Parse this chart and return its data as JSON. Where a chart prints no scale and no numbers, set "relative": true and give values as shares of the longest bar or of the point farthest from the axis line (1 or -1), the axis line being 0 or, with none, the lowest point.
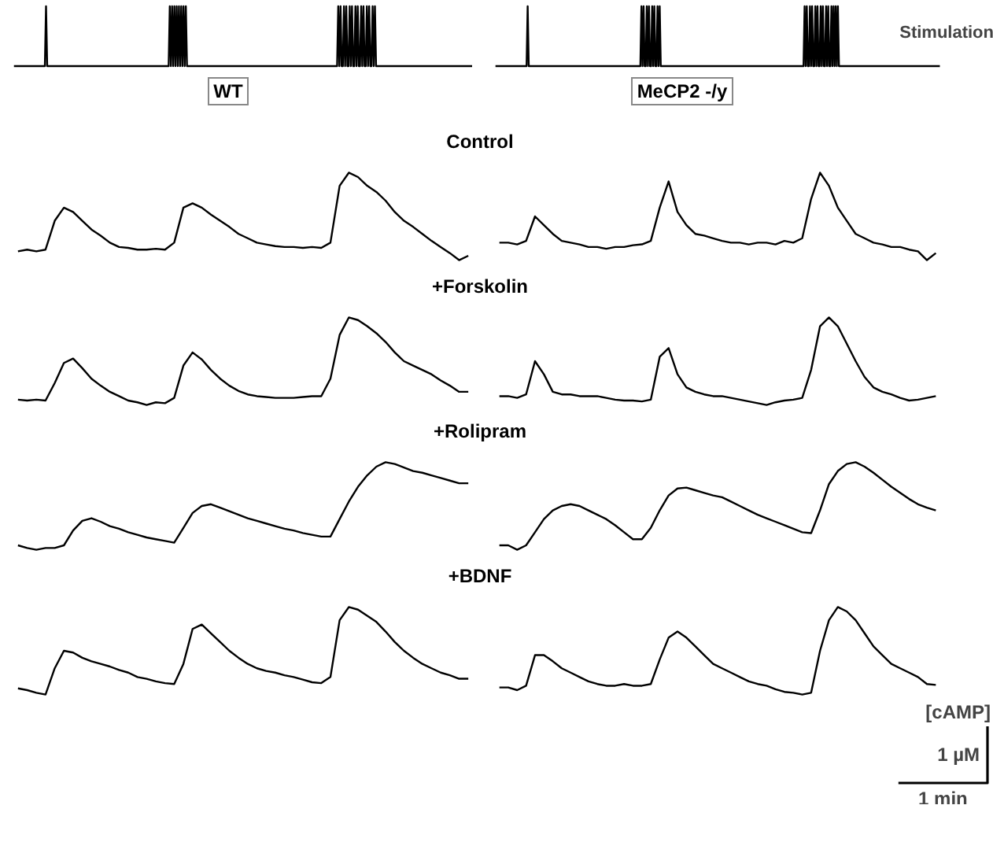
{
  "chart_data": [
    {
      "type": "line",
      "relative": true,
      "color": "#000000",
      "categories": [
        null,
        null,
        null,
        null,
        null,
        null,
        null,
        null,
        null,
        null,
        null,
        null,
        null,
        null,
        null,
        null,
        null,
        null,
        null,
        null,
        null,
        null,
        null,
        null,
        null,
        null,
        null,
        null,
        null,
        null,
        null,
        null,
        null,
        null,
        null,
        null,
        null,
        null,
        null,
        null,
        null,
        null,
        null,
        null,
        null,
        null,
        null,
        null,
        null,
        null,
        null,
        null,
        null,
        null,
        null,
        null,
        null,
        null,
        null,
        null,
        null,
        null,
        null,
        null,
        null,
        null,
        null,
        null,
        null,
        null,
        null,
        null,
        null,
        null,
        null,
        null,
        null,
        null,
        null,
        null,
        null,
        null,
        null,
        null,
        null,
        null,
        null,
        null,
        null,
        null,
        null,
        null,
        null,
        null,
        null,
        null,
        null,
        null,
        null,
        null,
        null,
        null,
        null,
        null,
        null,
        null,
        null,
        null,
        null,
        null,
        null,
        null,
        null,
        null,
        null,
        null,
        null,
        null,
        null,
        null,
        null,
        null,
        null,
        null,
        null,
        null,
        null,
        null,
        null,
        null,
        null,
        null,
        null,
        null,
        null,
        null,
        null,
        null,
        null,
        null,
        null,
        null,
        null,
        null,
        null,
        null,
        null,
        null,
        null,
        null,
        null,
        null,
        null,
        null,
        null,
        null,
        null,
        null,
        null,
        null,
        null,
        null,
        null,
        null,
        null,
        null,
        null,
        null,
        null,
        null,
        null,
        null,
        null,
        null,
        null,
        null,
        null,
        null,
        null,
        null,
        null,
        null,
        null,
        null,
        null,
        null,
        null,
        null,
        null,
        null,
        null,
        null,
        null,
        null,
        null,
        null,
        null,
        null,
        null,
        null,
        null,
        null,
        null,
        null,
        null,
        null,
        null,
        null,
        null,
        null,
        null,
        null,
        null,
        null,
        null,
        null,
        null,
        null,
        null,
        null,
        null,
        null,
        null,
        null,
        null,
        null,
        null,
        null,
        null,
        null,
        null,
        null,
        null,
        null,
        null,
        null,
        null,
        null,
        null,
        null,
        null,
        null,
        null,
        null,
        null,
        null,
        null,
        null,
        null,
        null,
        null,
        null,
        null,
        null,
        null,
        null,
        null,
        null,
        null,
        null,
        null,
        null,
        null,
        null,
        null,
        null,
        null,
        null,
        null,
        null,
        null,
        null,
        null,
        null,
        null,
        null,
        null,
        null,
        null,
        null,
        null,
        null,
        null,
        null,
        null,
        null,
        null,
        null,
        null,
        null,
        null,
        null,
        null,
        null,
        null,
        null,
        null,
        null,
        null,
        null,
        null,
        null,
        null,
        null,
        null,
        null,
        null,
        null,
        null,
        null,
        null,
        null,
        null,
        null,
        null,
        null,
        null,
        null,
        null,
        null,
        null,
        null,
        null,
        null,
        null,
        null,
        null,
        null,
        null,
        null,
        null,
        null,
        null,
        null,
        null,
        null,
        null,
        null,
        null,
        null,
        null,
        null,
        null,
        null,
        null,
        null,
        null,
        null,
        null,
        null,
        null,
        null,
        null,
        null,
        null,
        null,
        null,
        null,
        null,
        null,
        null,
        null,
        null,
        null,
        null,
        null,
        null,
        null,
        null,
        null,
        null,
        null,
        null,
        null,
        null,
        null,
        null,
        null,
        null,
        null,
        null,
        null,
        null,
        null,
        null,
        null,
        null,
        null,
        null,
        null,
        null,
        null,
        null,
        null,
        null,
        null,
        null,
        null,
        null,
        null,
        null
      ],
      "values": [
        0,
        0,
        0,
        0,
        0,
        0,
        0,
        0,
        0,
        0,
        0,
        0,
        0,
        0,
        0,
        0,
        0,
        0,
        0,
        0,
        0,
        0,
        0,
        0,
        0,
        0,
        0,
        0,
        1,
        0,
        0,
        0,
        0,
        0,
        0,
        0,
        0,
        0,
        0,
        0,
        0,
        0,
        0,
        0,
        0,
        0,
        0,
        0,
        0,
        0,
        0,
        0,
        0,
        0,
        0,
        0,
        0,
        0,
        0,
        0,
        0,
        0,
        0,
        0,
        0,
        0,
        0,
        0,
        0,
        0,
        0,
        0,
        0,
        0,
        0,
        0,
        0,
        0,
        0,
        0,
        0,
        0,
        0,
        0,
        0,
        0,
        0,
        0,
        0,
        0,
        0,
        0,
        0,
        0,
        0,
        0,
        0,
        0,
        0,
        0,
        0,
        0,
        0,
        0,
        0,
        0,
        0,
        0,
        0,
        0,
        0,
        0,
        0,
        0,
        0,
        0,
        0,
        0,
        0,
        0,
        0,
        0,
        0,
        0,
        0,
        0,
        0,
        0,
        0,
        0,
        0,
        0,
        0,
        0,
        0,
        0,
        1,
        0,
        1,
        0,
        1,
        0,
        1,
        0,
        1,
        0,
        1,
        0,
        1,
        0,
        1,
        0,
        0,
        0,
        0,
        0,
        0,
        0,
        0,
        0,
        0,
        0,
        0,
        0,
        0,
        0,
        0,
        0,
        0,
        0,
        0,
        0,
        0,
        0,
        0,
        0,
        0,
        0,
        0,
        0,
        0,
        0,
        0,
        0,
        0,
        0,
        0,
        0,
        0,
        0,
        0,
        0,
        0,
        0,
        0,
        0,
        0,
        0,
        0,
        0,
        0,
        0,
        0,
        0,
        0,
        0,
        0,
        0,
        0,
        0,
        0,
        0,
        0,
        0,
        0,
        0,
        0,
        0,
        0,
        0,
        0,
        0,
        0,
        0,
        0,
        0,
        0,
        0,
        0,
        0,
        0,
        0,
        0,
        0,
        0,
        0,
        0,
        0,
        0,
        0,
        0,
        0,
        0,
        0,
        0,
        0,
        0,
        0,
        0,
        0,
        0,
        0,
        0,
        0,
        0,
        0,
        0,
        0,
        0,
        0,
        0,
        0,
        0,
        0,
        0,
        0,
        0,
        0,
        0,
        0,
        0,
        0,
        0,
        0,
        0,
        0,
        0,
        0,
        0,
        0,
        0,
        0,
        0,
        1,
        0,
        1,
        0,
        0,
        1,
        0,
        1,
        0,
        0,
        1,
        0,
        1,
        0,
        0,
        1,
        0,
        1,
        0,
        0,
        1,
        0,
        1,
        0,
        0,
        1,
        0,
        1,
        0,
        0,
        1,
        0,
        1,
        0,
        0,
        0,
        0,
        0,
        0,
        0,
        0,
        0,
        0,
        0,
        0,
        0,
        0,
        0,
        0,
        0,
        0,
        0,
        0,
        0,
        0,
        0,
        0,
        0,
        0,
        0,
        0,
        0,
        0,
        0,
        0,
        0,
        0,
        0,
        0,
        0,
        0,
        0,
        0,
        0,
        0,
        0,
        0,
        0,
        0,
        0,
        0,
        0,
        0,
        0,
        0,
        0,
        0,
        0,
        0,
        0,
        0,
        0,
        0,
        0,
        0,
        0,
        0,
        0,
        0,
        0,
        0,
        0,
        0,
        0,
        0,
        0,
        0,
        0,
        0,
        0,
        0,
        0,
        0,
        0,
        0,
        0,
        0,
        0
      ]
    },
    {
      "type": "line",
      "relative": true,
      "color": "#000000",
      "annotations": [
        "Stimulation"
      ],
      "categories": [
        null,
        null,
        null,
        null,
        null,
        null,
        null,
        null,
        null,
        null,
        null,
        null,
        null,
        null,
        null,
        null,
        null,
        null,
        null,
        null,
        null,
        null,
        null,
        null,
        null,
        null,
        null,
        null,
        null,
        null,
        null,
        null,
        null,
        null,
        null,
        null,
        null,
        null,
        null,
        null,
        null,
        null,
        null,
        null,
        null,
        null,
        null,
        null,
        null,
        null,
        null,
        null,
        null,
        null,
        null,
        null,
        null,
        null,
        null,
        null,
        null,
        null,
        null,
        null,
        null,
        null,
        null,
        null,
        null,
        null,
        null,
        null,
        null,
        null,
        null,
        null,
        null,
        null,
        null,
        null,
        null,
        null,
        null,
        null,
        null,
        null,
        null,
        null,
        null,
        null,
        null,
        null,
        null,
        null,
        null,
        null,
        null,
        null,
        null,
        null,
        null,
        null,
        null,
        null,
        null,
        null,
        null,
        null,
        null,
        null,
        null,
        null,
        null,
        null,
        null,
        null,
        null,
        null,
        null,
        null,
        null,
        null,
        null,
        null,
        null,
        null,
        null,
        null,
        null,
        null,
        null,
        null,
        null,
        null,
        null,
        null,
        null,
        null,
        null,
        null,
        null,
        null,
        null,
        null,
        null,
        null,
        null,
        null,
        null,
        null,
        null,
        null,
        null,
        null,
        null,
        null,
        null,
        null,
        null,
        null,
        null,
        null,
        null,
        null,
        null,
        null,
        null,
        null,
        null,
        null,
        null,
        null,
        null,
        null,
        null,
        null,
        null,
        null,
        null,
        null,
        null,
        null,
        null,
        null,
        null,
        null,
        null,
        null,
        null,
        null,
        null,
        null,
        null,
        null,
        null,
        null,
        null,
        null,
        null,
        null,
        null,
        null,
        null,
        null,
        null,
        null,
        null,
        null,
        null,
        null,
        null,
        null,
        null,
        null,
        null,
        null,
        null,
        null,
        null,
        null,
        null,
        null,
        null,
        null,
        null,
        null,
        null,
        null,
        null,
        null,
        null,
        null,
        null,
        null,
        null,
        null,
        null,
        null,
        null,
        null,
        null,
        null,
        null,
        null,
        null,
        null,
        null,
        null,
        null,
        null,
        null,
        null,
        null,
        null,
        null,
        null,
        null,
        null,
        null,
        null,
        null,
        null,
        null,
        null,
        null,
        null,
        null,
        null,
        null,
        null,
        null,
        null,
        null,
        null,
        null,
        null,
        null,
        null,
        null,
        null,
        null,
        null,
        null,
        null,
        null,
        null,
        null,
        null,
        null,
        null,
        null,
        null,
        null,
        null,
        null,
        null,
        null,
        null,
        null,
        null,
        null,
        null,
        null,
        null,
        null,
        null,
        null,
        null,
        null,
        null,
        null,
        null,
        null,
        null,
        null,
        null,
        null,
        null,
        null,
        null,
        null,
        null,
        null,
        null,
        null,
        null,
        null,
        null,
        null,
        null,
        null,
        null,
        null,
        null,
        null,
        null,
        null,
        null,
        null,
        null,
        null,
        null,
        null,
        null,
        null,
        null,
        null,
        null,
        null,
        null,
        null,
        null,
        null,
        null,
        null,
        null,
        null,
        null,
        null,
        null,
        null,
        null,
        null,
        null,
        null,
        null,
        null,
        null,
        null,
        null,
        null,
        null,
        null,
        null,
        null,
        null,
        null,
        null,
        null,
        null,
        null,
        null,
        null,
        null,
        null,
        null,
        null,
        null,
        null,
        null,
        null,
        null,
        null,
        null,
        null,
        null,
        null,
        null,
        null,
        null,
        null,
        null,
        null,
        null,
        null,
        null,
        null,
        null,
        null,
        null,
        null,
        null,
        null,
        null,
        null
      ],
      "values": [
        0,
        0,
        0,
        0,
        0,
        0,
        0,
        0,
        0,
        0,
        0,
        0,
        0,
        0,
        0,
        0,
        0,
        0,
        0,
        0,
        0,
        0,
        0,
        0,
        0,
        0,
        0,
        0,
        0,
        0,
        1,
        0,
        0,
        0,
        0,
        0,
        0,
        0,
        0,
        0,
        0,
        0,
        0,
        0,
        0,
        0,
        0,
        0,
        0,
        0,
        0,
        0,
        0,
        0,
        0,
        0,
        0,
        0,
        0,
        0,
        0,
        0,
        0,
        0,
        0,
        0,
        0,
        0,
        0,
        0,
        0,
        0,
        0,
        0,
        0,
        0,
        0,
        0,
        0,
        0,
        0,
        0,
        0,
        0,
        0,
        0,
        0,
        0,
        0,
        0,
        0,
        0,
        0,
        0,
        0,
        0,
        0,
        0,
        0,
        0,
        0,
        0,
        0,
        0,
        0,
        0,
        0,
        0,
        0,
        0,
        0,
        0,
        0,
        0,
        0,
        0,
        0,
        0,
        0,
        0,
        0,
        0,
        0,
        0,
        0,
        0,
        0,
        0,
        0,
        0,
        0,
        0,
        0,
        0,
        0,
        0,
        1,
        0,
        1,
        0,
        0,
        1,
        0,
        1,
        0,
        0,
        1,
        0,
        1,
        0,
        0,
        1,
        0,
        1,
        0,
        0,
        0,
        0,
        0,
        0,
        0,
        0,
        0,
        0,
        0,
        0,
        0,
        0,
        0,
        0,
        0,
        0,
        0,
        0,
        0,
        0,
        0,
        0,
        0,
        0,
        0,
        0,
        0,
        0,
        0,
        0,
        0,
        0,
        0,
        0,
        0,
        0,
        0,
        0,
        0,
        0,
        0,
        0,
        0,
        0,
        0,
        0,
        0,
        0,
        0,
        0,
        0,
        0,
        0,
        0,
        0,
        0,
        0,
        0,
        0,
        0,
        0,
        0,
        0,
        0,
        0,
        0,
        0,
        0,
        0,
        0,
        0,
        0,
        0,
        0,
        0,
        0,
        0,
        0,
        0,
        0,
        0,
        0,
        0,
        0,
        0,
        0,
        0,
        0,
        0,
        0,
        0,
        0,
        0,
        0,
        0,
        0,
        0,
        0,
        0,
        0,
        0,
        0,
        0,
        0,
        0,
        0,
        0,
        0,
        0,
        0,
        0,
        0,
        0,
        0,
        0,
        0,
        0,
        0,
        0,
        0,
        0,
        0,
        0,
        0,
        0,
        0,
        0,
        0,
        0,
        0,
        0,
        0,
        1,
        0,
        1,
        0,
        0,
        1,
        0,
        1,
        0,
        0,
        1,
        0,
        1,
        0,
        0,
        1,
        0,
        1,
        0,
        0,
        1,
        0,
        1,
        0,
        0,
        1,
        0,
        1,
        0,
        1,
        0,
        1,
        0,
        0,
        0,
        0,
        0,
        0,
        0,
        0,
        0,
        0,
        0,
        0,
        0,
        0,
        0,
        0,
        0,
        0,
        0,
        0,
        0,
        0,
        0,
        0,
        0,
        0,
        0,
        0,
        0,
        0,
        0,
        0,
        0,
        0,
        0,
        0,
        0,
        0,
        0,
        0,
        0,
        0,
        0,
        0,
        0,
        0,
        0,
        0,
        0,
        0,
        0,
        0,
        0,
        0,
        0,
        0,
        0,
        0,
        0,
        0,
        0,
        0,
        0,
        0,
        0,
        0,
        0,
        0,
        0,
        0,
        0,
        0,
        0,
        0,
        0,
        0,
        0,
        0,
        0,
        0,
        0,
        0,
        0,
        0,
        0,
        0,
        0,
        0,
        0,
        0,
        0,
        0,
        0,
        0,
        0
      ]
    },
    {
      "type": "line",
      "relative": true,
      "color": "#000000",
      "title": "WT",
      "subtitle": "Control",
      "categories": [
        null,
        null,
        null,
        null,
        null,
        null,
        null,
        null,
        null,
        null,
        null,
        null,
        null,
        null,
        null,
        null,
        null,
        null,
        null,
        null,
        null,
        null,
        null,
        null,
        null,
        null,
        null,
        null,
        null,
        null,
        null,
        null,
        null,
        null,
        null,
        null,
        null,
        null,
        null,
        null,
        null,
        null,
        null,
        null,
        null,
        null,
        null,
        null,
        null,
        null
      ],
      "values": [
        0.1,
        0.12,
        0.1,
        0.12,
        0.45,
        0.6,
        0.55,
        0.45,
        0.35,
        0.28,
        0.2,
        0.15,
        0.14,
        0.12,
        0.12,
        0.13,
        0.12,
        0.2,
        0.6,
        0.65,
        0.6,
        0.52,
        0.45,
        0.38,
        0.3,
        0.25,
        0.2,
        0.18,
        0.16,
        0.15,
        0.15,
        0.14,
        0.15,
        0.14,
        0.2,
        0.85,
        1.0,
        0.95,
        0.85,
        0.78,
        0.68,
        0.55,
        0.45,
        0.38,
        0.3,
        0.22,
        0.15,
        0.08,
        0.0,
        0.05
      ]
    },
    {
      "type": "line",
      "relative": true,
      "color": "#000000",
      "title": "MeCP2 -/y",
      "categories": [
        null,
        null,
        null,
        null,
        null,
        null,
        null,
        null,
        null,
        null,
        null,
        null,
        null,
        null,
        null,
        null,
        null,
        null,
        null,
        null,
        null,
        null,
        null,
        null,
        null,
        null,
        null,
        null,
        null,
        null,
        null,
        null,
        null,
        null,
        null,
        null,
        null,
        null,
        null,
        null,
        null,
        null,
        null,
        null,
        null,
        null,
        null,
        null,
        null,
        null
      ],
      "values": [
        0.2,
        0.2,
        0.18,
        0.22,
        0.5,
        0.4,
        0.3,
        0.22,
        0.2,
        0.18,
        0.15,
        0.15,
        0.13,
        0.15,
        0.15,
        0.17,
        0.18,
        0.22,
        0.6,
        0.9,
        0.55,
        0.4,
        0.3,
        0.28,
        0.25,
        0.22,
        0.2,
        0.2,
        0.18,
        0.2,
        0.2,
        0.18,
        0.22,
        0.2,
        0.25,
        0.7,
        1.0,
        0.85,
        0.6,
        0.45,
        0.3,
        0.25,
        0.2,
        0.18,
        0.15,
        0.15,
        0.12,
        0.1,
        0.0,
        0.08
      ]
    },
    {
      "type": "line",
      "relative": true,
      "color": "#000000",
      "subtitle": "+Forskolin",
      "categories": [
        null,
        null,
        null,
        null,
        null,
        null,
        null,
        null,
        null,
        null,
        null,
        null,
        null,
        null,
        null,
        null,
        null,
        null,
        null,
        null,
        null,
        null,
        null,
        null,
        null,
        null,
        null,
        null,
        null,
        null,
        null,
        null,
        null,
        null,
        null,
        null,
        null,
        null,
        null,
        null,
        null,
        null,
        null,
        null,
        null,
        null,
        null,
        null,
        null,
        null
      ],
      "values": [
        0.06,
        0.05,
        0.06,
        0.05,
        0.25,
        0.48,
        0.53,
        0.42,
        0.3,
        0.22,
        0.15,
        0.1,
        0.05,
        0.03,
        0.0,
        0.03,
        0.02,
        0.08,
        0.45,
        0.6,
        0.52,
        0.4,
        0.3,
        0.22,
        0.16,
        0.12,
        0.1,
        0.09,
        0.08,
        0.08,
        0.08,
        0.09,
        0.1,
        0.1,
        0.3,
        0.8,
        1.0,
        0.97,
        0.9,
        0.82,
        0.72,
        0.6,
        0.5,
        0.45,
        0.4,
        0.35,
        0.28,
        0.22,
        0.15,
        0.15
      ]
    },
    {
      "type": "line",
      "relative": true,
      "color": "#000000",
      "categories": [
        null,
        null,
        null,
        null,
        null,
        null,
        null,
        null,
        null,
        null,
        null,
        null,
        null,
        null,
        null,
        null,
        null,
        null,
        null,
        null,
        null,
        null,
        null,
        null,
        null,
        null,
        null,
        null,
        null,
        null,
        null,
        null,
        null,
        null,
        null,
        null,
        null,
        null,
        null,
        null,
        null,
        null,
        null,
        null,
        null,
        null,
        null,
        null,
        null,
        null
      ],
      "values": [
        0.1,
        0.1,
        0.08,
        0.12,
        0.5,
        0.35,
        0.15,
        0.12,
        0.12,
        0.1,
        0.1,
        0.1,
        0.08,
        0.06,
        0.05,
        0.05,
        0.04,
        0.06,
        0.55,
        0.65,
        0.35,
        0.2,
        0.15,
        0.12,
        0.1,
        0.1,
        0.08,
        0.06,
        0.04,
        0.02,
        0.0,
        0.03,
        0.05,
        0.06,
        0.08,
        0.4,
        0.9,
        1.0,
        0.9,
        0.7,
        0.5,
        0.32,
        0.2,
        0.15,
        0.12,
        0.08,
        0.05,
        0.06,
        0.08,
        0.1
      ]
    },
    {
      "type": "line",
      "relative": true,
      "color": "#000000",
      "subtitle": "+Rolipram",
      "categories": [
        null,
        null,
        null,
        null,
        null,
        null,
        null,
        null,
        null,
        null,
        null,
        null,
        null,
        null,
        null,
        null,
        null,
        null,
        null,
        null,
        null,
        null,
        null,
        null,
        null,
        null,
        null,
        null,
        null,
        null,
        null,
        null,
        null,
        null,
        null,
        null,
        null,
        null,
        null,
        null,
        null,
        null,
        null,
        null,
        null,
        null,
        null,
        null,
        null,
        null
      ],
      "values": [
        0.05,
        0.02,
        0.0,
        0.02,
        0.02,
        0.05,
        0.22,
        0.33,
        0.36,
        0.32,
        0.27,
        0.24,
        0.2,
        0.17,
        0.14,
        0.12,
        0.1,
        0.08,
        0.25,
        0.42,
        0.5,
        0.52,
        0.48,
        0.44,
        0.4,
        0.36,
        0.33,
        0.3,
        0.27,
        0.24,
        0.22,
        0.19,
        0.17,
        0.15,
        0.15,
        0.35,
        0.55,
        0.72,
        0.85,
        0.95,
        1.0,
        0.98,
        0.94,
        0.9,
        0.88,
        0.85,
        0.82,
        0.79,
        0.76,
        0.76
      ]
    },
    {
      "type": "line",
      "relative": true,
      "color": "#000000",
      "categories": [
        null,
        null,
        null,
        null,
        null,
        null,
        null,
        null,
        null,
        null,
        null,
        null,
        null,
        null,
        null,
        null,
        null,
        null,
        null,
        null,
        null,
        null,
        null,
        null,
        null,
        null,
        null,
        null,
        null,
        null,
        null,
        null,
        null,
        null,
        null,
        null,
        null,
        null,
        null,
        null,
        null,
        null,
        null,
        null,
        null,
        null,
        null,
        null,
        null,
        null
      ],
      "values": [
        0.05,
        0.05,
        0.0,
        0.05,
        0.2,
        0.35,
        0.45,
        0.5,
        0.52,
        0.5,
        0.45,
        0.4,
        0.35,
        0.28,
        0.2,
        0.12,
        0.12,
        0.25,
        0.45,
        0.62,
        0.7,
        0.71,
        0.68,
        0.65,
        0.62,
        0.6,
        0.55,
        0.5,
        0.45,
        0.4,
        0.36,
        0.32,
        0.28,
        0.24,
        0.2,
        0.19,
        0.45,
        0.75,
        0.9,
        0.98,
        1.0,
        0.95,
        0.88,
        0.8,
        0.72,
        0.65,
        0.58,
        0.52,
        0.48,
        0.45
      ]
    },
    {
      "type": "line",
      "relative": true,
      "color": "#000000",
      "subtitle": "+BDNF",
      "categories": [
        null,
        null,
        null,
        null,
        null,
        null,
        null,
        null,
        null,
        null,
        null,
        null,
        null,
        null,
        null,
        null,
        null,
        null,
        null,
        null,
        null,
        null,
        null,
        null,
        null,
        null,
        null,
        null,
        null,
        null,
        null,
        null,
        null,
        null,
        null,
        null,
        null,
        null,
        null,
        null,
        null,
        null,
        null,
        null,
        null,
        null,
        null,
        null,
        null,
        null
      ],
      "values": [
        0.07,
        0.05,
        0.02,
        0.0,
        0.3,
        0.5,
        0.48,
        0.42,
        0.38,
        0.35,
        0.32,
        0.28,
        0.25,
        0.2,
        0.18,
        0.15,
        0.13,
        0.12,
        0.35,
        0.75,
        0.8,
        0.7,
        0.6,
        0.5,
        0.42,
        0.35,
        0.3,
        0.27,
        0.25,
        0.22,
        0.2,
        0.17,
        0.14,
        0.13,
        0.2,
        0.85,
        1.0,
        0.97,
        0.9,
        0.83,
        0.72,
        0.6,
        0.5,
        0.42,
        0.35,
        0.3,
        0.25,
        0.22,
        0.18,
        0.18
      ]
    },
    {
      "type": "line",
      "relative": true,
      "color": "#000000",
      "annotations": [
        "[cAMP]",
        "1 µM",
        "1 min"
      ],
      "categories": [
        null,
        null,
        null,
        null,
        null,
        null,
        null,
        null,
        null,
        null,
        null,
        null,
        null,
        null,
        null,
        null,
        null,
        null,
        null,
        null,
        null,
        null,
        null,
        null,
        null,
        null,
        null,
        null,
        null,
        null,
        null,
        null,
        null,
        null,
        null,
        null,
        null,
        null,
        null,
        null,
        null,
        null,
        null,
        null,
        null,
        null,
        null,
        null,
        null,
        null
      ],
      "values": [
        0.08,
        0.08,
        0.05,
        0.1,
        0.45,
        0.45,
        0.38,
        0.3,
        0.25,
        0.2,
        0.15,
        0.12,
        0.1,
        0.1,
        0.12,
        0.1,
        0.1,
        0.12,
        0.4,
        0.65,
        0.72,
        0.65,
        0.55,
        0.45,
        0.35,
        0.3,
        0.25,
        0.2,
        0.15,
        0.12,
        0.1,
        0.06,
        0.03,
        0.02,
        0.0,
        0.02,
        0.5,
        0.85,
        1.0,
        0.95,
        0.85,
        0.7,
        0.55,
        0.45,
        0.35,
        0.3,
        0.25,
        0.2,
        0.12,
        0.11
      ]
    }
  ]
}
